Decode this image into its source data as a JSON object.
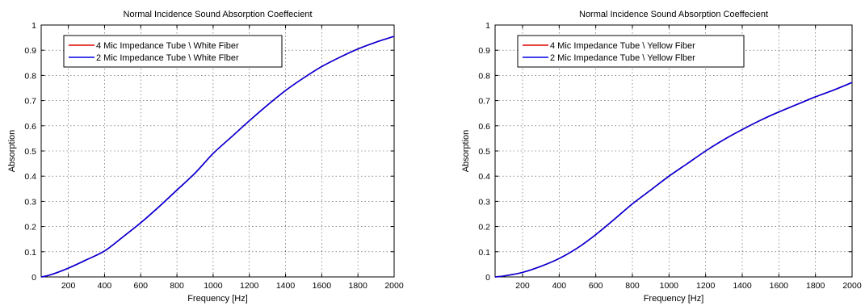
{
  "chart_data": [
    {
      "type": "line",
      "title": "Normal Incidence Sound Absorption Coeffecient",
      "xlabel": "Frequency [Hz]",
      "ylabel": "Absorption",
      "xlim": [
        50,
        2000
      ],
      "ylim": [
        0,
        1
      ],
      "xticks": [
        "200",
        "400",
        "600",
        "800",
        "1000",
        "1200",
        "1400",
        "1600",
        "1800",
        "2000"
      ],
      "yticks": [
        "0",
        "0.1",
        "0.2",
        "0.3",
        "0.4",
        "0.5",
        "0.6",
        "0.7",
        "0.8",
        "0.9",
        "1"
      ],
      "grid": true,
      "legend_position": "top-left",
      "x": [
        50,
        100,
        200,
        300,
        400,
        500,
        600,
        700,
        800,
        900,
        1000,
        1100,
        1200,
        1300,
        1400,
        1500,
        1600,
        1700,
        1800,
        1900,
        2000
      ],
      "series": [
        {
          "name": "4 Mic Impedance Tube \\ White Fiber",
          "color": "#e00000",
          "values": [
            0.0,
            0.008,
            0.035,
            0.068,
            0.103,
            0.158,
            0.215,
            0.278,
            0.345,
            0.412,
            0.49,
            0.555,
            0.62,
            0.682,
            0.74,
            0.79,
            0.835,
            0.872,
            0.905,
            0.932,
            0.955
          ]
        },
        {
          "name": "2 Mic Impedance Tube \\ White Flber",
          "color": "#0000e0",
          "values": [
            0.0,
            0.008,
            0.035,
            0.068,
            0.103,
            0.158,
            0.215,
            0.278,
            0.345,
            0.412,
            0.49,
            0.555,
            0.62,
            0.682,
            0.74,
            0.79,
            0.835,
            0.872,
            0.905,
            0.932,
            0.955
          ]
        }
      ]
    },
    {
      "type": "line",
      "title": "Normal Incidence Sound Absorption Coeffecient",
      "xlabel": "Frequency [Hz]",
      "ylabel": "Absorption",
      "xlim": [
        50,
        2000
      ],
      "ylim": [
        0,
        1
      ],
      "xticks": [
        "200",
        "400",
        "600",
        "800",
        "1000",
        "1200",
        "1400",
        "1600",
        "1800",
        "2000"
      ],
      "yticks": [
        "0",
        "0.1",
        "0.2",
        "0.3",
        "0.4",
        "0.5",
        "0.6",
        "0.7",
        "0.8",
        "0.9",
        "1"
      ],
      "grid": true,
      "legend_position": "top-left",
      "x": [
        50,
        100,
        200,
        300,
        400,
        500,
        600,
        700,
        800,
        900,
        1000,
        1100,
        1200,
        1300,
        1400,
        1500,
        1600,
        1700,
        1800,
        1900,
        2000
      ],
      "series": [
        {
          "name": "4 Mic Impedance Tube \\ Yellow Fiber",
          "color": "#e00000",
          "values": [
            0.0,
            0.004,
            0.018,
            0.042,
            0.073,
            0.115,
            0.168,
            0.228,
            0.29,
            0.345,
            0.4,
            0.45,
            0.5,
            0.545,
            0.585,
            0.622,
            0.655,
            0.685,
            0.715,
            0.742,
            0.772
          ]
        },
        {
          "name": "2 Mic Impedance Tube \\ Yellow Flber",
          "color": "#0000e0",
          "values": [
            0.0,
            0.004,
            0.018,
            0.042,
            0.073,
            0.115,
            0.168,
            0.228,
            0.29,
            0.345,
            0.4,
            0.45,
            0.5,
            0.545,
            0.585,
            0.622,
            0.655,
            0.685,
            0.715,
            0.742,
            0.772
          ]
        }
      ]
    }
  ]
}
